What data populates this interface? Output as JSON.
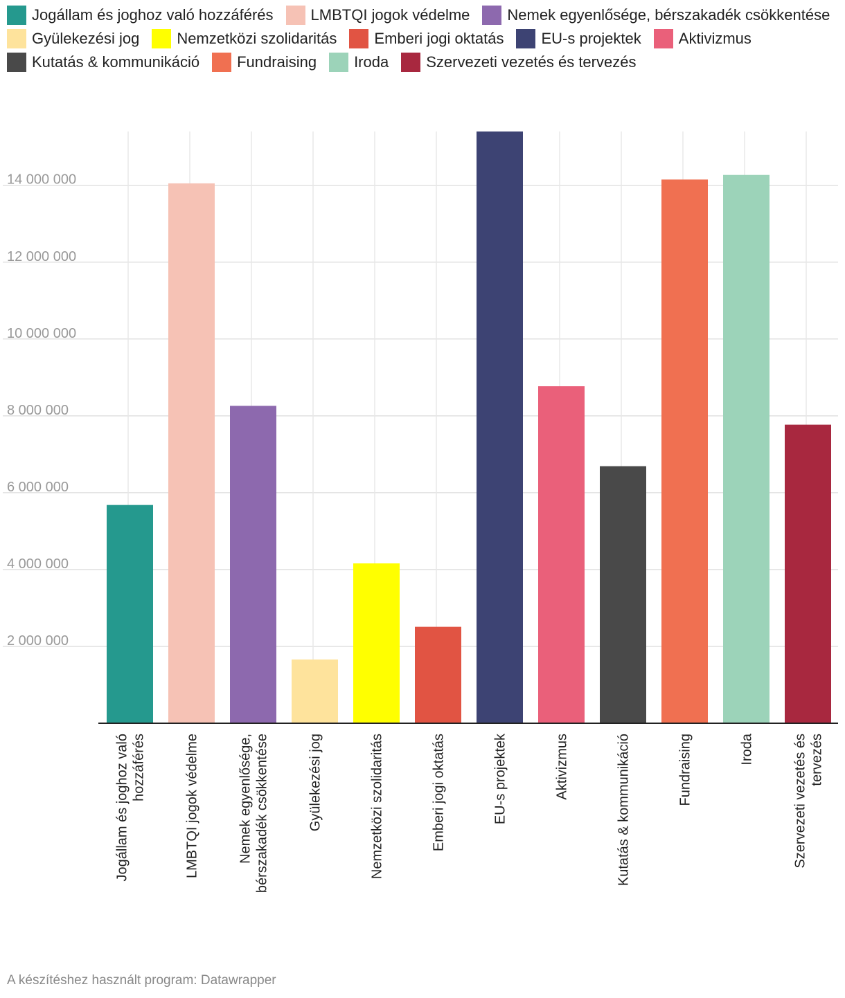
{
  "chart_data": {
    "type": "bar",
    "title": "",
    "xlabel": "",
    "ylabel": "",
    "ylim": [
      0,
      15400000
    ],
    "yticks": [
      2000000,
      4000000,
      6000000,
      8000000,
      10000000,
      12000000,
      14000000
    ],
    "ytick_labels": [
      "2 000 000",
      "4 000 000",
      "6 000 000",
      "8 000 000",
      "10 000 000",
      "12 000 000",
      "14 000 000"
    ],
    "grid": true,
    "legend_position": "top",
    "categories": [
      "Jogállam és joghoz való hozzáférés",
      "LMBTQI jogok védelme",
      "Nemek egyenlősége, bérszakadék csökkentése",
      "Gyülekezési jog",
      "Nemzetközi szolidaritás",
      "Emberi jogi oktatás",
      "EU-s projektek",
      "Aktivizmus",
      "Kutatás & kommunikáció",
      "Fundraising",
      "Iroda",
      "Szervezeti vezetés és tervezés"
    ],
    "category_label_lines": [
      [
        "Jogállam és joghoz való",
        "hozzáférés"
      ],
      [
        "LMBTQI jogok védelme"
      ],
      [
        "Nemek egyenlősége,",
        "bérszakadék csökkentése"
      ],
      [
        "Gyülekezési jog"
      ],
      [
        "Nemzetközi szolidaritás"
      ],
      [
        "Emberi jogi oktatás"
      ],
      [
        "EU-s projektek"
      ],
      [
        "Aktivizmus"
      ],
      [
        "Kutatás & kommunikáció"
      ],
      [
        "Fundraising"
      ],
      [
        "Iroda"
      ],
      [
        "Szervezeti vezetés és",
        "tervezés"
      ]
    ],
    "values": [
      5680000,
      14050000,
      8260000,
      1660000,
      4160000,
      2510000,
      15400000,
      8770000,
      6690000,
      14150000,
      14270000,
      7770000
    ],
    "colors": [
      "#25998e",
      "#f6c2b5",
      "#8d69ae",
      "#fee39c",
      "#ffff00",
      "#e15443",
      "#3d4373",
      "#ea607a",
      "#494949",
      "#f07051",
      "#9cd3b9",
      "#a8283f"
    ]
  },
  "legend": {
    "items": [
      {
        "label": "Jogállam és joghoz való hozzáférés",
        "color": "#25998e"
      },
      {
        "label": "LMBTQI jogok védelme",
        "color": "#f6c2b5"
      },
      {
        "label": "Nemek egyenlősége, bérszakadék csökkentése",
        "color": "#8d69ae"
      },
      {
        "label": "Gyülekezési jog",
        "color": "#fee39c"
      },
      {
        "label": "Nemzetközi szolidaritás",
        "color": "#ffff00"
      },
      {
        "label": "Emberi jogi oktatás",
        "color": "#e15443"
      },
      {
        "label": "EU-s projektek",
        "color": "#3d4373"
      },
      {
        "label": "Aktivizmus",
        "color": "#ea607a"
      },
      {
        "label": "Kutatás & kommunikáció",
        "color": "#494949"
      },
      {
        "label": "Fundraising",
        "color": "#f07051"
      },
      {
        "label": "Iroda",
        "color": "#9cd3b9"
      },
      {
        "label": "Szervezeti vezetés és tervezés",
        "color": "#a8283f"
      }
    ]
  },
  "footer": {
    "credit": "A készítéshez használt program: Datawrapper"
  }
}
